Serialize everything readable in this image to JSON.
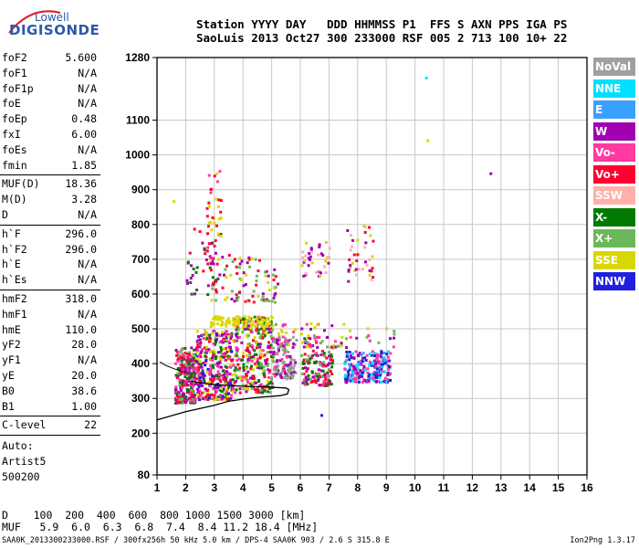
{
  "logo": {
    "top": "Lowell",
    "main": "DIGISONDE"
  },
  "header": {
    "line1": "Station YYYY DAY   DDD HHMMSS P1  FFS S AXN PPS IGA PS",
    "line2": "SaoLuis 2013 Oct27 300 233000 RSF 005 2 713 100 10+ 22"
  },
  "params": {
    "group1": [
      [
        "foF2",
        "5.600"
      ],
      [
        "foF1",
        "N/A"
      ],
      [
        "foF1p",
        "N/A"
      ],
      [
        "foE",
        "N/A"
      ],
      [
        "foEp",
        "0.48"
      ],
      [
        "fxI",
        "6.00"
      ],
      [
        "foEs",
        "N/A"
      ],
      [
        "fmin",
        "1.85"
      ]
    ],
    "group2": [
      [
        "MUF(D)",
        "18.36"
      ],
      [
        "M(D)",
        "3.28"
      ],
      [
        "D",
        "N/A"
      ]
    ],
    "group3": [
      [
        "h`F",
        "296.0"
      ],
      [
        "h`F2",
        "296.0"
      ],
      [
        "h`E",
        "N/A"
      ],
      [
        "h`Es",
        "N/A"
      ]
    ],
    "group4": [
      [
        "hmF2",
        "318.0"
      ],
      [
        "hmF1",
        "N/A"
      ],
      [
        "hmE",
        "110.0"
      ],
      [
        "yF2",
        "28.0"
      ],
      [
        "yF1",
        "N/A"
      ],
      [
        "yE",
        "20.0"
      ],
      [
        "B0",
        "38.6"
      ],
      [
        "B1",
        "1.00"
      ]
    ],
    "group5": [
      [
        "C-level",
        "22"
      ]
    ],
    "auto": [
      "Auto:",
      "Artist5",
      "500200"
    ]
  },
  "legend": [
    {
      "label": "NoVal",
      "color": "#a0a0a0"
    },
    {
      "label": "NNE",
      "color": "#00e0ff"
    },
    {
      "label": "E",
      "color": "#3aa0ff"
    },
    {
      "label": "W",
      "color": "#a000b0"
    },
    {
      "label": "Vo-",
      "color": "#ff3aa0"
    },
    {
      "label": "Vo+",
      "color": "#ff0030"
    },
    {
      "label": "SSW",
      "color": "#ffb0a8"
    },
    {
      "label": "X-",
      "color": "#007a00"
    },
    {
      "label": "X+",
      "color": "#6ab85a"
    },
    {
      "label": "SSE",
      "color": "#d8d800"
    },
    {
      "label": "NNW",
      "color": "#2020e0"
    }
  ],
  "footer": {
    "d_row": "D    100  200  400  600  800 1000 1500 3000 [km]",
    "muf_row": "MUF   5.9  6.0  6.3  6.8  7.4  8.4 11.2 18.4 [MHz]",
    "file": "SAA0K_2013300233000.RSF / 300fx256h 50 kHz 5.0 km / DPS-4 SAA0K 903 / 2.6 S 315.8 E",
    "version": "Ion2Png 1.3.17"
  },
  "chart_data": {
    "type": "scatter",
    "xlim": [
      1,
      16
    ],
    "ylim": [
      80,
      1280
    ],
    "xticks": [
      "1",
      "2",
      "3",
      "4",
      "5",
      "6",
      "7",
      "8",
      "9",
      "10",
      "11",
      "12",
      "13",
      "14",
      "15",
      "16"
    ],
    "yticks": [
      {
        "v": 80,
        "label": "80"
      },
      {
        "v": 200,
        "label": "200"
      },
      {
        "v": 300,
        "label": "300"
      },
      {
        "v": 400,
        "label": "400"
      },
      {
        "v": 500,
        "label": "500"
      },
      {
        "v": 600,
        "label": "600"
      },
      {
        "v": 700,
        "label": "700"
      },
      {
        "v": 800,
        "label": "800"
      },
      {
        "v": 900,
        "label": "900"
      },
      {
        "v": 1000,
        "label": "1000"
      },
      {
        "v": 1100,
        "label": "1100"
      },
      {
        "v": 1280,
        "label": "1280"
      }
    ],
    "grid": true,
    "profile_curve": [
      [
        1,
        238
      ],
      [
        2,
        262
      ],
      [
        3,
        280
      ],
      [
        3.5,
        292
      ],
      [
        4,
        298
      ],
      [
        4.5,
        303
      ],
      [
        5.3,
        308
      ],
      [
        5.55,
        313
      ],
      [
        5.6,
        325
      ],
      [
        5.5,
        330
      ],
      [
        5,
        332
      ],
      [
        4,
        335
      ],
      [
        3,
        340
      ],
      [
        2.5,
        345
      ],
      [
        2.2,
        350
      ]
    ],
    "profile_curve2": [
      [
        1.1,
        405
      ],
      [
        1.3,
        395
      ],
      [
        1.6,
        385
      ],
      [
        2,
        375
      ]
    ],
    "clusters": [
      {
        "x": [
          1.6,
          2.3
        ],
        "y": [
          290,
          450
        ],
        "n": 260,
        "colors": [
          "#ff0030",
          "#ff3aa0",
          "#a000b0",
          "#6ab85a",
          "#007a00"
        ]
      },
      {
        "x": [
          2.3,
          3.6
        ],
        "y": [
          300,
          500
        ],
        "n": 380,
        "colors": [
          "#ff0030",
          "#ff3aa0",
          "#a000b0",
          "#007a00",
          "#d8d800",
          "#2020e0"
        ]
      },
      {
        "x": [
          3.6,
          5.0
        ],
        "y": [
          320,
          540
        ],
        "n": 330,
        "colors": [
          "#ff0030",
          "#ff3aa0",
          "#a000b0",
          "#007a00",
          "#6ab85a",
          "#d8d800"
        ]
      },
      {
        "x": [
          5.0,
          5.8
        ],
        "y": [
          360,
          480
        ],
        "n": 120,
        "colors": [
          "#a0a0a0",
          "#6ab85a",
          "#ff3aa0",
          "#a000b0"
        ]
      },
      {
        "x": [
          6.0,
          7.1
        ],
        "y": [
          340,
          480
        ],
        "n": 150,
        "colors": [
          "#ff3aa0",
          "#a000b0",
          "#007a00",
          "#6ab85a",
          "#ff0030"
        ]
      },
      {
        "x": [
          7.5,
          9.1
        ],
        "y": [
          350,
          440
        ],
        "n": 240,
        "colors": [
          "#2020e0",
          "#00e0ff",
          "#a000b0",
          "#3aa0ff",
          "#ff3aa0"
        ]
      },
      {
        "x": [
          2.8,
          5.2
        ],
        "y": [
          580,
          720
        ],
        "n": 90,
        "colors": [
          "#d8d800",
          "#ff0030",
          "#a000b0",
          "#6ab85a"
        ]
      },
      {
        "x": [
          2.8,
          5.0
        ],
        "y": [
          510,
          540
        ],
        "n": 80,
        "colors": [
          "#d8d800"
        ]
      },
      {
        "x": [
          2.0,
          3.2
        ],
        "y": [
          600,
          800
        ],
        "n": 40,
        "colors": [
          "#ff0030",
          "#a000b0",
          "#007a00"
        ]
      },
      {
        "x": [
          2.7,
          3.2
        ],
        "y": [
          700,
          980
        ],
        "n": 40,
        "colors": [
          "#ff0030",
          "#ff3aa0",
          "#d8d800"
        ]
      },
      {
        "x": [
          6.0,
          7.0
        ],
        "y": [
          650,
          760
        ],
        "n": 40,
        "colors": [
          "#ffb0a8",
          "#d8d800",
          "#a000b0"
        ]
      },
      {
        "x": [
          7.6,
          8.5
        ],
        "y": [
          640,
          800
        ],
        "n": 40,
        "colors": [
          "#d8d800",
          "#ffb0a8",
          "#a000b0",
          "#ff0030"
        ]
      },
      {
        "x": [
          5.0,
          9.3
        ],
        "y": [
          450,
          520
        ],
        "n": 60,
        "colors": [
          "#d8d800",
          "#ff3aa0",
          "#6ab85a",
          "#a000b0"
        ]
      }
    ],
    "outliers": [
      [
        10.35,
        1225,
        "#00e0ff"
      ],
      [
        10.4,
        1045,
        "#d8d800"
      ],
      [
        12.6,
        950,
        "#a000b0"
      ],
      [
        1.55,
        870,
        "#d8d800"
      ],
      [
        6.7,
        255,
        "#2020e0"
      ]
    ]
  }
}
